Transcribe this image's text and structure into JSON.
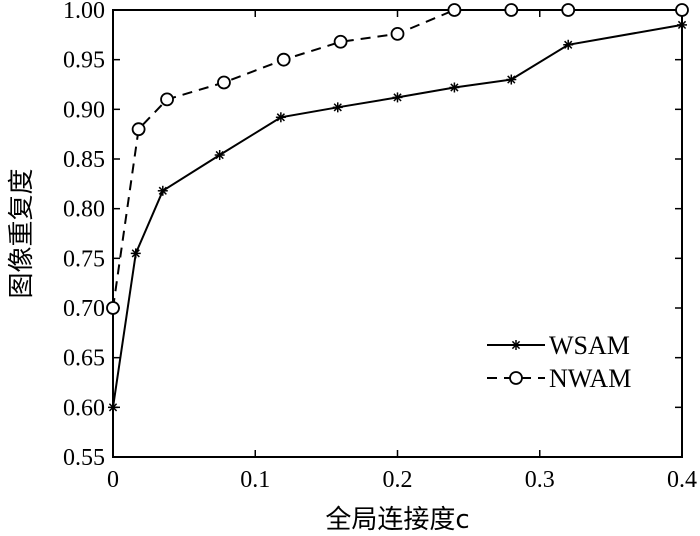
{
  "chart_data": {
    "type": "line",
    "xlabel": "全局连接度c",
    "ylabel": "图像重复度",
    "xlim": [
      0,
      0.4
    ],
    "ylim": [
      0.55,
      1.0
    ],
    "x_ticks": [
      "0",
      "0.1",
      "0.2",
      "0.3",
      "0.4"
    ],
    "y_ticks": [
      "0.55",
      "0.60",
      "0.65",
      "0.70",
      "0.75",
      "0.80",
      "0.85",
      "0.90",
      "0.95",
      "1.00"
    ],
    "grid": false,
    "legend_position": "lower-right",
    "series": [
      {
        "name": "WSAM",
        "line_style": "solid",
        "marker": "star",
        "color": "#000000",
        "x": [
          0,
          0.016,
          0.035,
          0.075,
          0.118,
          0.158,
          0.2,
          0.24,
          0.28,
          0.32,
          0.4
        ],
        "y": [
          0.6,
          0.755,
          0.818,
          0.854,
          0.892,
          0.902,
          0.912,
          0.922,
          0.93,
          0.965,
          0.985
        ]
      },
      {
        "name": "NWAM",
        "line_style": "dashed",
        "marker": "circle",
        "color": "#000000",
        "x": [
          0,
          0.018,
          0.038,
          0.078,
          0.12,
          0.16,
          0.2,
          0.24,
          0.28,
          0.32,
          0.4
        ],
        "y": [
          0.7,
          0.88,
          0.91,
          0.927,
          0.95,
          0.968,
          0.976,
          1.0,
          1.0,
          1.0,
          1.0
        ]
      }
    ]
  }
}
